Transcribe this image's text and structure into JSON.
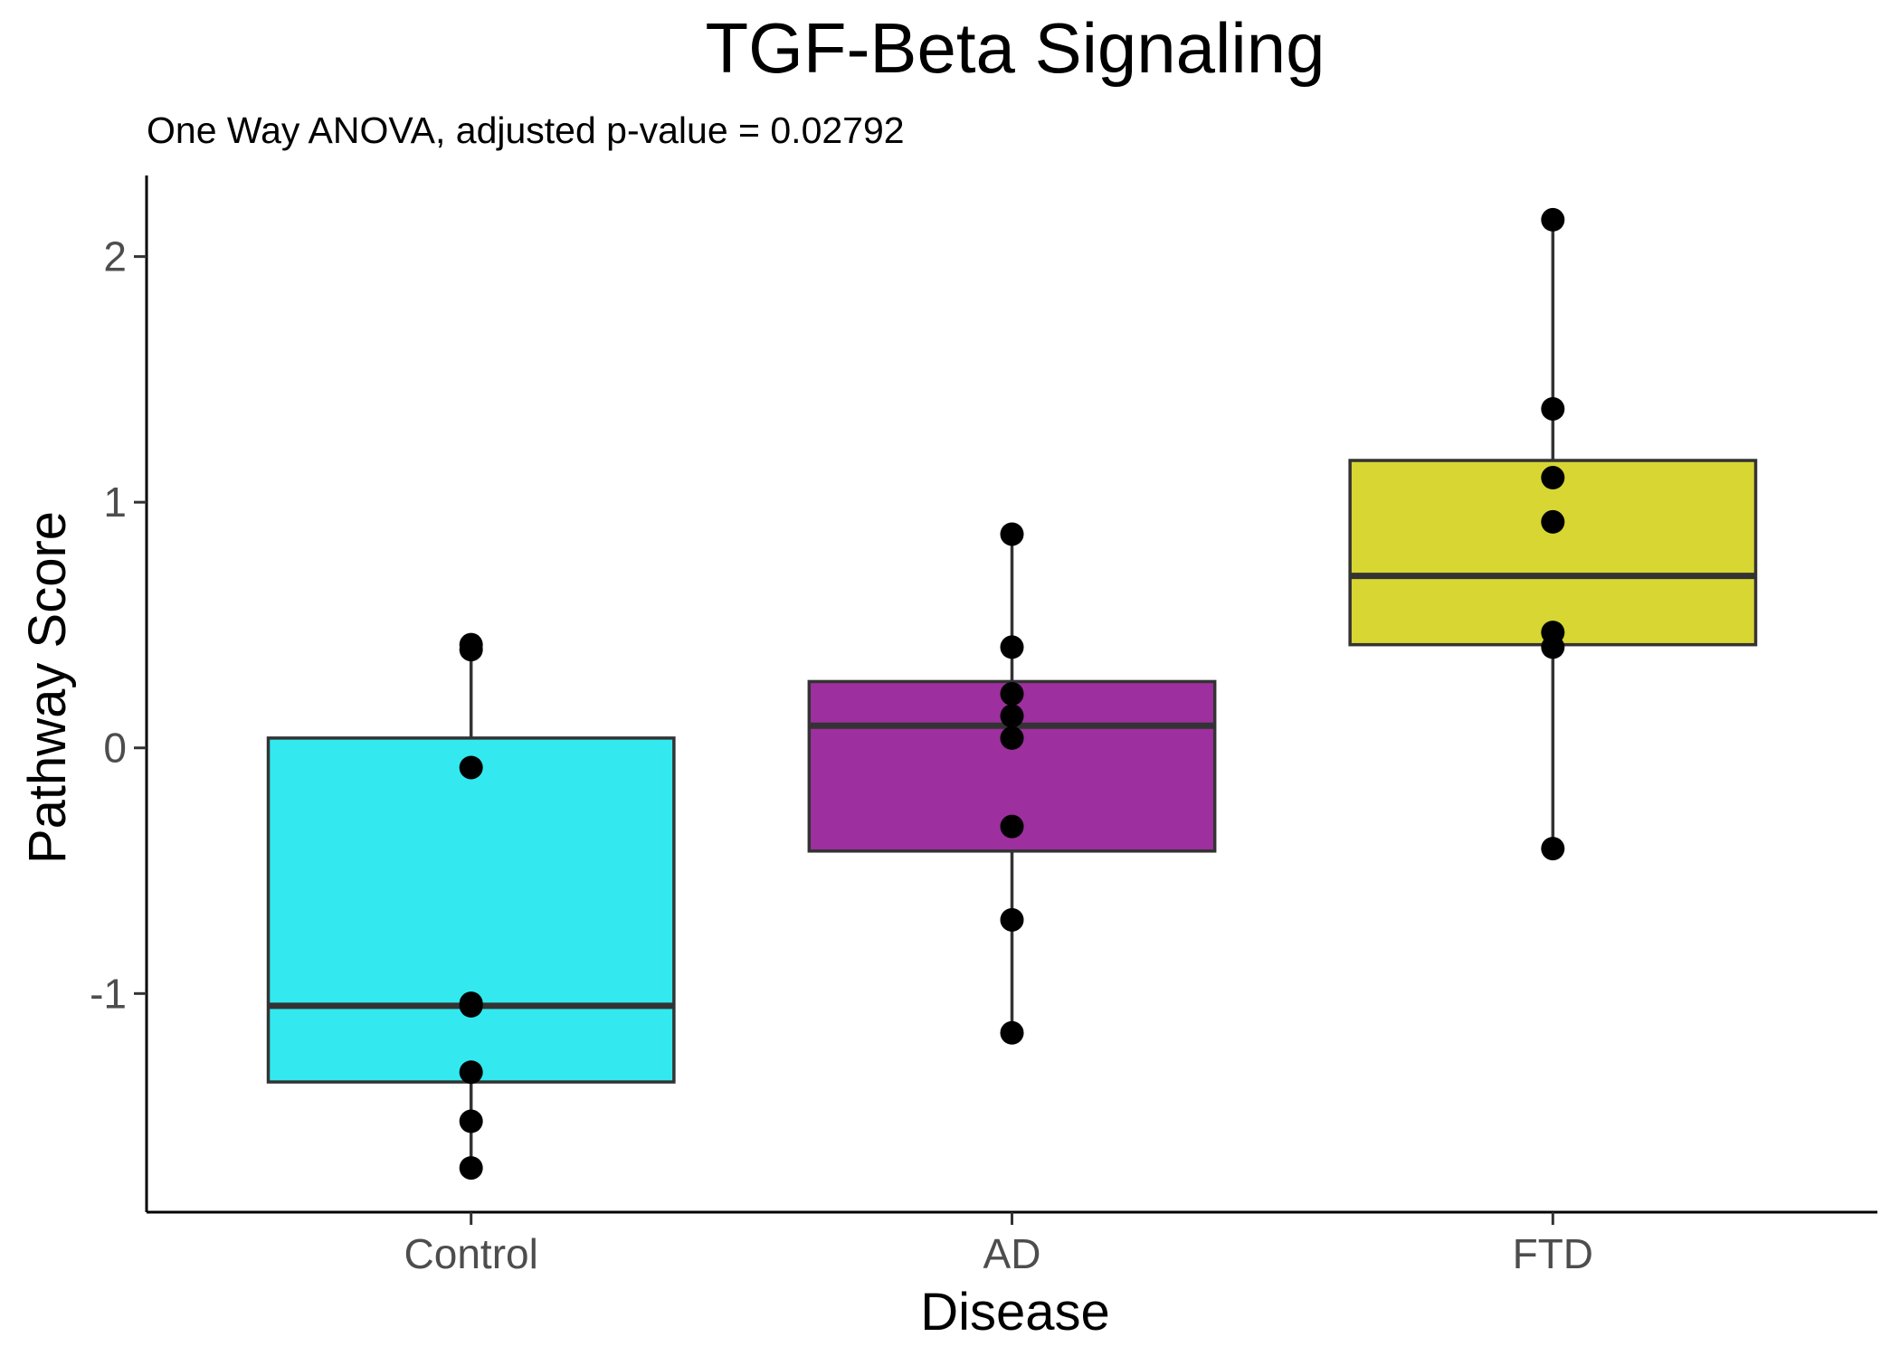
{
  "chart_data": {
    "type": "boxplot",
    "title": "TGF-Beta Signaling",
    "subtitle": "One Way ANOVA, adjusted p-value = 0.02792",
    "xlabel": "Disease",
    "ylabel": "Pathway Score",
    "ylim": [
      -1.89,
      2.33
    ],
    "yticks": [
      -1,
      0,
      1,
      2
    ],
    "ytick_labels": [
      "-1",
      "0",
      "1",
      "2"
    ],
    "categories": [
      "Control",
      "AD",
      "FTD"
    ],
    "grid": false,
    "legend": "none",
    "groups": [
      {
        "category": "Control",
        "color": "#33E9EF",
        "q1": -1.36,
        "median": -1.05,
        "q3": 0.04,
        "whisker_low": -1.71,
        "whisker_high": 0.42,
        "points": [
          0.42,
          0.4,
          -0.08,
          -1.04,
          -1.05,
          -1.32,
          -1.52,
          -1.71
        ]
      },
      {
        "category": "AD",
        "color": "#9E2F9E",
        "q1": -0.42,
        "median": 0.09,
        "q3": 0.27,
        "whisker_low": -1.16,
        "whisker_high": 0.87,
        "points": [
          0.87,
          0.41,
          0.22,
          0.13,
          0.04,
          -0.32,
          -0.7,
          -1.16
        ]
      },
      {
        "category": "FTD",
        "color": "#D7D632",
        "q1": 0.42,
        "median": 0.7,
        "q3": 1.17,
        "whisker_low": -0.41,
        "whisker_high": 2.15,
        "points": [
          2.15,
          1.38,
          1.1,
          0.92,
          0.47,
          0.41,
          -0.41
        ]
      }
    ]
  }
}
